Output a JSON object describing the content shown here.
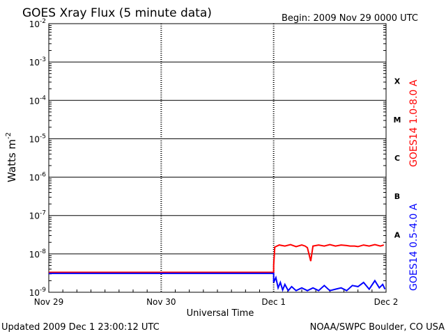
{
  "header": {
    "title": "GOES Xray Flux (5 minute data)",
    "begin": "Begin:  2009 Nov 29 0000 UTC"
  },
  "footer": {
    "updated": "Updated 2009 Dec  1 23:00:12 UTC",
    "credit": "NOAA/SWPC Boulder, CO USA"
  },
  "chart_data": {
    "type": "line",
    "title": "GOES Xray Flux (5 minute data)",
    "xlabel": "Universal Time",
    "ylabel": "Watts m",
    "ylabel_superscript": "-2",
    "yscale": "log",
    "ylim": [
      1e-09,
      0.01
    ],
    "xlim_days": [
      0,
      3
    ],
    "x_ticks": [
      "Nov 29",
      "Nov 30",
      "Dec 1",
      "Dec 2"
    ],
    "y_ticks": [
      {
        "base": "10",
        "exp": "-9"
      },
      {
        "base": "10",
        "exp": "-8"
      },
      {
        "base": "10",
        "exp": "-7"
      },
      {
        "base": "10",
        "exp": "-6"
      },
      {
        "base": "10",
        "exp": "-5"
      },
      {
        "base": "10",
        "exp": "-4"
      },
      {
        "base": "10",
        "exp": "-3"
      },
      {
        "base": "10",
        "exp": "-2"
      }
    ],
    "flare_classes": [
      "A",
      "B",
      "C",
      "M",
      "X"
    ],
    "grid": true,
    "series": [
      {
        "name": "GOES14 1.0-8.0 A",
        "color": "#ff0000",
        "points": [
          [
            0,
            3.3e-09
          ],
          [
            2.0,
            3.3e-09
          ],
          [
            2.0,
            5e-09
          ],
          [
            2.01,
            1.5e-08
          ],
          [
            2.05,
            1.7e-08
          ],
          [
            2.1,
            1.6e-08
          ],
          [
            2.15,
            1.75e-08
          ],
          [
            2.2,
            1.55e-08
          ],
          [
            2.25,
            1.7e-08
          ],
          [
            2.28,
            1.6e-08
          ],
          [
            2.3,
            1.45e-08
          ],
          [
            2.33,
            6.5e-09
          ],
          [
            2.35,
            1.6e-08
          ],
          [
            2.4,
            1.7e-08
          ],
          [
            2.45,
            1.6e-08
          ],
          [
            2.5,
            1.75e-08
          ],
          [
            2.55,
            1.6e-08
          ],
          [
            2.6,
            1.7e-08
          ],
          [
            2.65,
            1.65e-08
          ],
          [
            2.68,
            1.6e-08
          ],
          [
            2.72,
            1.6e-08
          ],
          [
            2.75,
            1.55e-08
          ],
          [
            2.8,
            1.7e-08
          ],
          [
            2.85,
            1.6e-08
          ],
          [
            2.9,
            1.75e-08
          ],
          [
            2.95,
            1.6e-08
          ],
          [
            2.98,
            1.7e-08
          ]
        ]
      },
      {
        "name": "GOES14 0.5-4.0 A",
        "color": "#0000ff",
        "points": [
          [
            0,
            3.1e-09
          ],
          [
            2.0,
            3.1e-09
          ],
          [
            2.0,
            1.8e-09
          ],
          [
            2.02,
            2.4e-09
          ],
          [
            2.04,
            1.3e-09
          ],
          [
            2.06,
            1.8e-09
          ],
          [
            2.08,
            1.15e-09
          ],
          [
            2.1,
            1.6e-09
          ],
          [
            2.13,
            1.1e-09
          ],
          [
            2.16,
            1.4e-09
          ],
          [
            2.2,
            1.1e-09
          ],
          [
            2.25,
            1.3e-09
          ],
          [
            2.3,
            1.1e-09
          ],
          [
            2.35,
            1.3e-09
          ],
          [
            2.4,
            1.1e-09
          ],
          [
            2.45,
            1.5e-09
          ],
          [
            2.5,
            1.1e-09
          ],
          [
            2.55,
            1.2e-09
          ],
          [
            2.6,
            1.3e-09
          ],
          [
            2.65,
            1.1e-09
          ],
          [
            2.7,
            1.5e-09
          ],
          [
            2.75,
            1.4e-09
          ],
          [
            2.8,
            1.8e-09
          ],
          [
            2.85,
            1.2e-09
          ],
          [
            2.9,
            2e-09
          ],
          [
            2.94,
            1.3e-09
          ],
          [
            2.97,
            1.6e-09
          ],
          [
            2.99,
            1.2e-09
          ]
        ]
      }
    ]
  }
}
